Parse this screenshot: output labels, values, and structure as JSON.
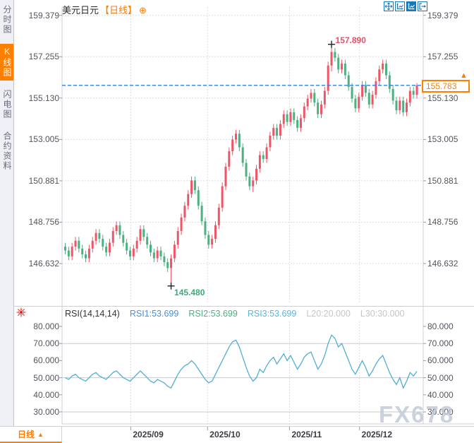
{
  "header": {
    "title": "美元日元",
    "period_label": "【日线】",
    "plus_icon": "⊕"
  },
  "toolbar": {
    "icons": [
      {
        "name": "move-crosshair-icon",
        "active": false
      },
      {
        "name": "auto-scale-axis-icon",
        "active": false
      },
      {
        "name": "manual-scale-axis-icon",
        "active": true
      },
      {
        "name": "exit-fullscreen-icon",
        "active": false
      }
    ]
  },
  "sidebar": {
    "items": [
      {
        "label": "分时图",
        "active": false
      },
      {
        "label": "K线图",
        "active": true
      },
      {
        "label": "闪电图",
        "active": false
      },
      {
        "label": "合约资料",
        "active": false
      }
    ]
  },
  "price_box": {
    "value": "155.783"
  },
  "price_arrow": "▲",
  "markers": {
    "high_label": "157.890",
    "low_label": "145.480"
  },
  "bottom_bar": {
    "period_label": "日线",
    "arrow": "▲"
  },
  "watermark": "FX678",
  "colors": {
    "up_candle": "#ee5566",
    "down_candle": "#4cb080",
    "accent_orange": "#ff8000",
    "current_price_line": "#2b7ef0",
    "rsi_line": "#52aed3",
    "grid": "#dcdce2",
    "rsi_grid": "#c9c9cf",
    "high_label": "#ef4d63",
    "low_label": "#3cab78"
  },
  "rsi_legend": {
    "name": "RSI(14,14,14)",
    "entries": [
      {
        "label": "RSI1:53.699",
        "color": "#4a8fd9"
      },
      {
        "label": "RSI2:53.699",
        "color": "#4cb080"
      },
      {
        "label": "RSI3:53.699",
        "color": "#55b8e0"
      },
      {
        "label": "L20:20.000",
        "color": "#c5c5cd"
      },
      {
        "label": "L30:30.000",
        "color": "#c5c5cd"
      }
    ]
  },
  "chart_data": [
    {
      "type": "candlestick",
      "title": "美元日元 日线",
      "x_tick_labels": [
        "2025/09",
        "2025/10",
        "2025/11",
        "2025/12"
      ],
      "x_tick_candle_index": [
        19.5,
        42,
        66,
        86.5
      ],
      "y_axis_labels": [
        159.379,
        157.255,
        155.13,
        153.005,
        150.881,
        148.756,
        146.632
      ],
      "current_price": 155.783,
      "high_marker": {
        "index": 78,
        "price": 157.89
      },
      "low_marker": {
        "index": 31,
        "price": 145.48
      },
      "candles": [
        [
          147.5,
          147.7,
          147.1,
          147.3
        ],
        [
          147.3,
          147.5,
          146.8,
          147.0
        ],
        [
          147.0,
          147.7,
          146.8,
          147.5
        ],
        [
          147.5,
          148.0,
          147.3,
          147.8
        ],
        [
          147.8,
          148.0,
          147.2,
          147.4
        ],
        [
          147.4,
          147.6,
          146.9,
          147.1
        ],
        [
          147.1,
          147.3,
          146.7,
          146.9
        ],
        [
          146.9,
          147.6,
          146.7,
          147.4
        ],
        [
          147.4,
          148.0,
          147.2,
          147.8
        ],
        [
          147.8,
          148.4,
          147.6,
          148.2
        ],
        [
          148.2,
          148.4,
          147.7,
          147.9
        ],
        [
          147.9,
          148.1,
          147.3,
          147.5
        ],
        [
          147.5,
          147.7,
          147.0,
          147.2
        ],
        [
          147.2,
          147.9,
          147.0,
          147.7
        ],
        [
          147.7,
          148.5,
          147.5,
          148.3
        ],
        [
          148.3,
          148.8,
          148.1,
          148.6
        ],
        [
          148.6,
          148.8,
          147.9,
          148.1
        ],
        [
          148.1,
          148.3,
          147.5,
          147.7
        ],
        [
          147.7,
          147.9,
          147.1,
          147.3
        ],
        [
          147.3,
          147.5,
          146.8,
          147.0
        ],
        [
          147.0,
          147.6,
          146.8,
          147.4
        ],
        [
          147.4,
          148.0,
          147.2,
          147.8
        ],
        [
          147.8,
          148.6,
          147.6,
          148.4
        ],
        [
          148.4,
          148.6,
          147.8,
          148.0
        ],
        [
          148.0,
          148.2,
          147.4,
          147.6
        ],
        [
          147.6,
          147.8,
          147.0,
          147.2
        ],
        [
          147.2,
          147.4,
          146.7,
          146.9
        ],
        [
          146.9,
          147.5,
          146.7,
          147.3
        ],
        [
          147.3,
          147.5,
          146.8,
          147.0
        ],
        [
          147.0,
          147.2,
          146.5,
          146.7
        ],
        [
          146.7,
          146.9,
          146.2,
          146.4
        ],
        [
          146.4,
          147.1,
          145.48,
          146.9
        ],
        [
          146.9,
          147.8,
          146.7,
          147.6
        ],
        [
          147.6,
          148.5,
          147.4,
          148.3
        ],
        [
          148.3,
          149.2,
          148.1,
          149.0
        ],
        [
          149.0,
          149.8,
          148.8,
          149.6
        ],
        [
          149.6,
          150.4,
          149.4,
          150.2
        ],
        [
          150.2,
          151.1,
          150.0,
          150.9
        ],
        [
          150.9,
          151.1,
          150.2,
          150.4
        ],
        [
          150.4,
          150.6,
          149.4,
          149.6
        ],
        [
          149.6,
          149.8,
          148.6,
          148.8
        ],
        [
          148.8,
          149.0,
          147.9,
          148.1
        ],
        [
          148.1,
          148.3,
          147.4,
          147.6
        ],
        [
          147.6,
          148.1,
          147.4,
          147.9
        ],
        [
          147.9,
          148.8,
          147.7,
          148.6
        ],
        [
          148.6,
          149.7,
          148.4,
          149.5
        ],
        [
          149.5,
          150.8,
          149.3,
          150.6
        ],
        [
          150.6,
          151.8,
          150.4,
          151.6
        ],
        [
          151.6,
          152.6,
          151.4,
          152.4
        ],
        [
          152.4,
          153.2,
          152.2,
          153.0
        ],
        [
          153.0,
          153.5,
          152.8,
          153.3
        ],
        [
          153.3,
          153.5,
          152.4,
          152.6
        ],
        [
          152.6,
          152.8,
          151.6,
          151.8
        ],
        [
          151.8,
          152.0,
          150.9,
          151.1
        ],
        [
          151.1,
          151.3,
          150.4,
          150.6
        ],
        [
          150.6,
          151.1,
          150.3,
          150.9
        ],
        [
          150.9,
          151.7,
          150.7,
          151.5
        ],
        [
          151.5,
          152.4,
          151.3,
          152.2
        ],
        [
          152.2,
          152.4,
          151.8,
          152.0
        ],
        [
          152.0,
          152.8,
          151.8,
          152.6
        ],
        [
          152.6,
          153.4,
          152.4,
          153.2
        ],
        [
          153.2,
          153.8,
          153.0,
          153.6
        ],
        [
          153.6,
          153.8,
          153.0,
          153.2
        ],
        [
          153.2,
          154.0,
          153.0,
          153.8
        ],
        [
          153.8,
          154.5,
          153.6,
          154.3
        ],
        [
          154.3,
          154.5,
          153.7,
          153.9
        ],
        [
          153.9,
          154.6,
          153.7,
          154.4
        ],
        [
          154.4,
          154.6,
          153.8,
          154.0
        ],
        [
          154.0,
          154.2,
          153.4,
          153.6
        ],
        [
          153.6,
          154.3,
          153.4,
          154.1
        ],
        [
          154.1,
          154.9,
          153.9,
          154.7
        ],
        [
          154.7,
          155.3,
          154.5,
          155.1
        ],
        [
          155.1,
          155.6,
          154.9,
          155.4
        ],
        [
          155.4,
          155.6,
          154.7,
          154.9
        ],
        [
          154.9,
          155.1,
          154.1,
          154.3
        ],
        [
          154.3,
          155.0,
          154.1,
          154.8
        ],
        [
          154.8,
          155.7,
          154.6,
          155.5
        ],
        [
          155.5,
          157.0,
          155.3,
          156.8
        ],
        [
          156.8,
          157.89,
          156.5,
          157.5
        ],
        [
          157.5,
          157.7,
          157.0,
          157.2
        ],
        [
          157.2,
          157.4,
          156.4,
          156.6
        ],
        [
          156.6,
          157.1,
          156.4,
          156.9
        ],
        [
          156.9,
          157.1,
          156.1,
          156.3
        ],
        [
          156.3,
          156.5,
          155.5,
          155.7
        ],
        [
          155.7,
          155.9,
          154.9,
          155.1
        ],
        [
          155.1,
          155.3,
          154.4,
          154.6
        ],
        [
          154.6,
          155.4,
          154.4,
          155.2
        ],
        [
          155.2,
          156.0,
          155.0,
          155.8
        ],
        [
          155.8,
          156.0,
          155.2,
          155.4
        ],
        [
          155.4,
          155.6,
          154.6,
          154.8
        ],
        [
          154.8,
          155.5,
          154.6,
          155.3
        ],
        [
          155.3,
          156.2,
          155.1,
          156.0
        ],
        [
          156.0,
          156.8,
          155.8,
          156.6
        ],
        [
          156.6,
          157.1,
          156.4,
          156.9
        ],
        [
          156.9,
          157.1,
          156.1,
          156.3
        ],
        [
          156.3,
          156.5,
          155.4,
          155.6
        ],
        [
          155.6,
          155.8,
          154.8,
          155.0
        ],
        [
          155.0,
          155.2,
          154.3,
          154.5
        ],
        [
          154.5,
          155.2,
          154.3,
          155.0
        ],
        [
          155.0,
          155.2,
          154.2,
          154.4
        ],
        [
          154.4,
          155.1,
          154.2,
          154.9
        ],
        [
          154.9,
          155.7,
          154.7,
          155.5
        ],
        [
          155.5,
          155.7,
          155.1,
          155.3
        ],
        [
          155.3,
          155.9,
          155.1,
          155.78
        ]
      ]
    },
    {
      "type": "line",
      "name": "RSI(14,14,14)",
      "y_axis_labels": [
        80,
        70,
        60,
        50,
        40,
        30
      ],
      "hlines": [
        70,
        50,
        30
      ],
      "values": [
        50,
        49,
        51,
        52,
        50,
        49,
        48,
        50,
        52,
        53,
        51,
        50,
        49,
        51,
        53,
        54,
        52,
        50,
        49,
        48,
        50,
        52,
        54,
        52,
        50,
        48,
        47,
        49,
        48,
        47,
        45,
        44,
        48,
        52,
        55,
        57,
        58,
        60,
        58,
        55,
        52,
        49,
        47,
        48,
        52,
        56,
        60,
        64,
        68,
        71,
        72,
        68,
        62,
        56,
        51,
        48,
        50,
        55,
        53,
        57,
        60,
        62,
        58,
        61,
        64,
        60,
        63,
        59,
        55,
        58,
        62,
        64,
        65,
        60,
        55,
        58,
        63,
        70,
        75,
        73,
        68,
        70,
        65,
        60,
        55,
        52,
        56,
        60,
        56,
        51,
        54,
        58,
        61,
        63,
        58,
        53,
        49,
        46,
        50,
        44,
        48,
        53,
        51,
        53.7
      ]
    }
  ]
}
